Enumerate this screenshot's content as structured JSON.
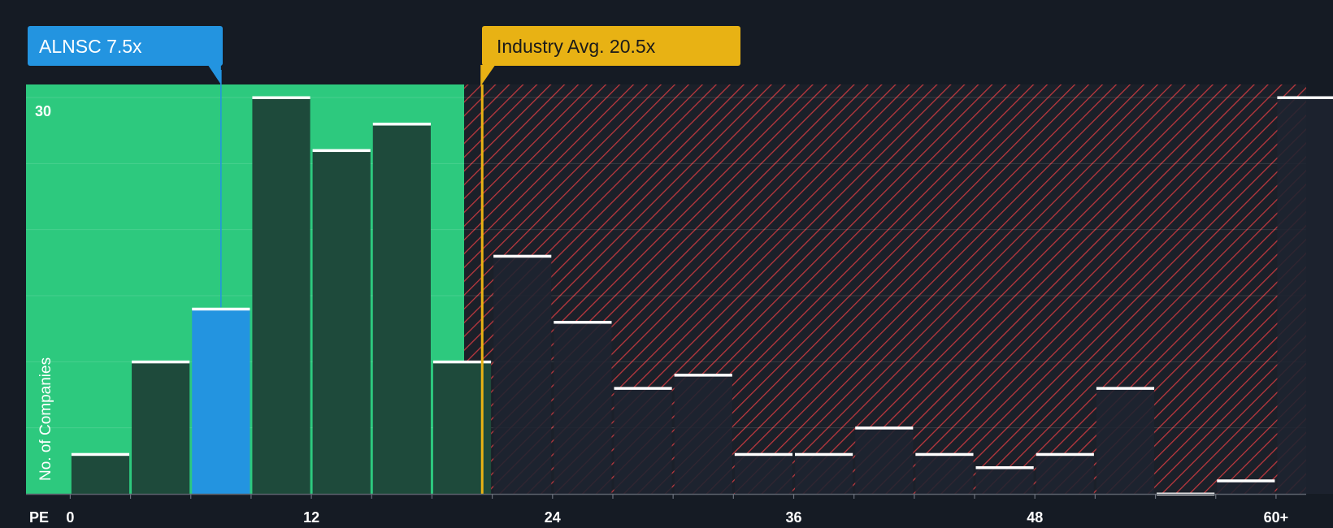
{
  "colors": {
    "background": "#151b24",
    "fair_zone": "#2dc97e",
    "bar_in_zone": "#1e4a3b",
    "bar_out_zone": "#1e2330",
    "highlight_bar": "#2394e0",
    "bar_cap": "#ffffff",
    "hatch": "#d83c42",
    "industry": "#e8b214",
    "subject": "#2394e0",
    "tick_text": "#ffffff"
  },
  "subject_label": "ALNSC 7.5x",
  "industry_label": "Industry Avg. 20.5x",
  "chart_data": {
    "type": "bar",
    "xlabel": "PE",
    "ylabel": "No. of Companies",
    "x_ticks": [
      "0",
      "12",
      "24",
      "36",
      "48",
      "60+"
    ],
    "y_ticks": [
      "30"
    ],
    "bin_width": 3,
    "x_domain": [
      -2.2,
      61.5
    ],
    "ylim": [
      0,
      31
    ],
    "subject": {
      "name": "ALNSC",
      "value": 7.5
    },
    "industry_avg": {
      "name": "Industry Avg.",
      "value": 20.5
    },
    "fair_zone_max": 19.6,
    "bins_start": [
      0,
      3,
      6,
      9,
      12,
      15,
      18,
      21,
      24,
      27,
      30,
      33,
      36,
      39,
      42,
      45,
      48,
      51,
      54,
      57,
      60
    ],
    "values": [
      3,
      10,
      14,
      30,
      26,
      28,
      10,
      18,
      13,
      8,
      9,
      3,
      3,
      5,
      3,
      2,
      3,
      8,
      0,
      1,
      30
    ]
  }
}
